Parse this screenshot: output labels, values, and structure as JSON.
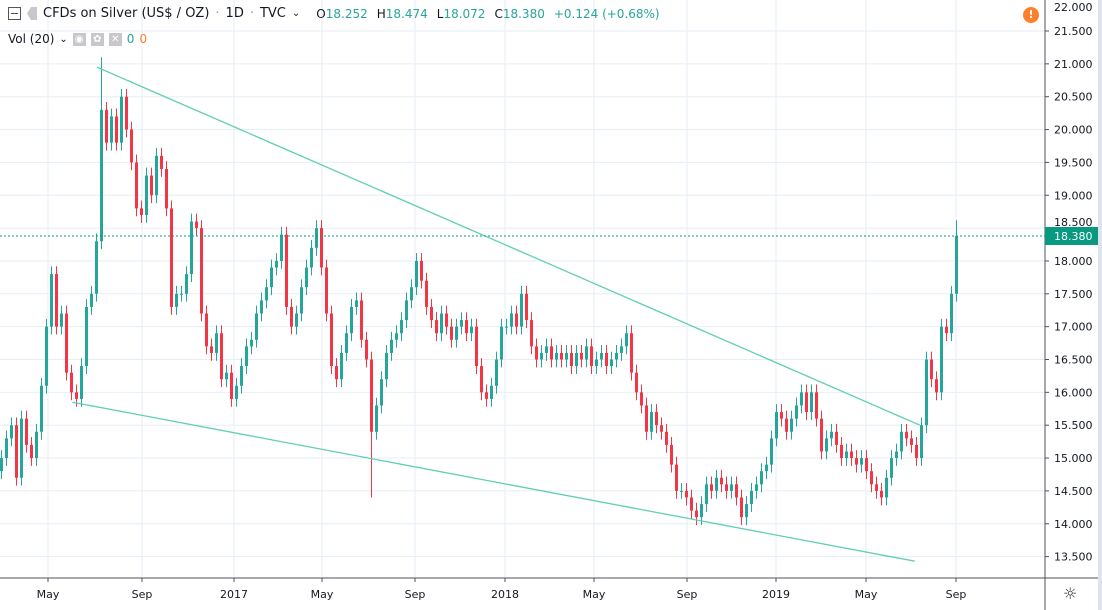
{
  "header": {
    "title": "CFDs on Silver (US$ / OZ)",
    "interval": "1D",
    "exchange": "TVC",
    "ohlc": {
      "o_label": "O",
      "o": "18.252",
      "h_label": "H",
      "h": "18.474",
      "l_label": "L",
      "l": "18.072",
      "c_label": "C",
      "c": "18.380",
      "change": "+0.124 (+0.68%)"
    },
    "volume": {
      "label": "Vol (20)",
      "value1": "0",
      "value2": "0"
    },
    "icons": [
      "collapse-icon",
      "flag-icon",
      "chevron-down-icon",
      "eye-icon",
      "gear-icon",
      "close-icon",
      "warning-icon"
    ]
  },
  "colors": {
    "up": "#26a69a",
    "down": "#f23645",
    "trendline": "#5fcfb4",
    "grid": "#e6eef5",
    "last_price": "#089981",
    "warning": "#ff7f2a"
  },
  "chart_data": {
    "type": "candlestick",
    "title": "CFDs on Silver (US$ / OZ)",
    "x_range": [
      "2016-02",
      "2019-12"
    ],
    "x_ticks": [
      "May",
      "Sep",
      "2017",
      "May",
      "Sep",
      "2018",
      "May",
      "Sep",
      "2019",
      "May",
      "Sep"
    ],
    "ylim": [
      13.2,
      22.0
    ],
    "y_ticks": [
      "22.000",
      "21.500",
      "21.000",
      "20.500",
      "20.000",
      "19.500",
      "19.000",
      "18.500",
      "18.000",
      "17.500",
      "17.000",
      "16.500",
      "16.000",
      "15.500",
      "15.000",
      "14.500",
      "14.000",
      "13.500"
    ],
    "grid": true,
    "approx_weekly_closes": [
      15.0,
      15.3,
      15.5,
      14.7,
      15.6,
      15.2,
      15.0,
      15.4,
      16.1,
      17.0,
      17.8,
      17.0,
      17.2,
      16.3,
      16.0,
      15.9,
      16.4,
      17.3,
      17.5,
      18.3,
      20.3,
      19.8,
      20.2,
      19.8,
      20.5,
      20.0,
      19.5,
      18.8,
      18.7,
      19.3,
      19.0,
      19.6,
      19.4,
      18.8,
      17.3,
      17.5,
      17.5,
      17.8,
      18.6,
      18.5,
      17.2,
      16.7,
      16.6,
      16.9,
      16.2,
      16.3,
      15.9,
      16.1,
      16.4,
      16.7,
      16.8,
      17.2,
      17.4,
      17.6,
      17.9,
      18.0,
      18.4,
      17.3,
      17.0,
      17.2,
      17.6,
      17.9,
      18.2,
      18.5,
      17.9,
      17.2,
      16.4,
      16.2,
      16.6,
      16.9,
      17.3,
      17.4,
      16.8,
      16.5,
      15.4,
      15.8,
      16.2,
      16.6,
      16.8,
      16.9,
      17.1,
      17.4,
      17.6,
      18.0,
      17.7,
      17.3,
      17.1,
      16.9,
      17.2,
      17.0,
      16.8,
      17.0,
      17.1,
      16.9,
      17.0,
      16.4,
      16.0,
      15.9,
      16.1,
      16.5,
      17.0,
      17.0,
      17.2,
      17.0,
      17.5,
      17.1,
      16.7,
      16.5,
      16.6,
      16.7,
      16.5,
      16.6,
      16.5,
      16.6,
      16.4,
      16.6,
      16.5,
      16.7,
      16.4,
      16.5,
      16.6,
      16.4,
      16.5,
      16.6,
      16.7,
      16.9,
      16.3,
      16.0,
      15.8,
      15.4,
      15.7,
      15.5,
      15.4,
      15.2,
      14.9,
      14.5,
      14.5,
      14.4,
      14.2,
      14.1,
      14.3,
      14.6,
      14.5,
      14.7,
      14.6,
      14.5,
      14.6,
      14.4,
      14.1,
      14.3,
      14.5,
      14.6,
      14.8,
      14.9,
      15.3,
      15.7,
      15.6,
      15.4,
      15.6,
      15.8,
      16.0,
      15.7,
      16.0,
      15.6,
      15.1,
      15.3,
      15.4,
      15.2,
      15.0,
      15.1,
      15.0,
      14.9,
      15.0,
      14.8,
      14.6,
      14.5,
      14.4,
      14.7,
      15.0,
      15.1,
      15.4,
      15.3,
      15.2,
      15.0,
      15.5,
      16.5,
      16.2,
      16.0,
      17.0,
      16.9,
      17.5,
      18.38
    ],
    "extreme_wicks": [
      {
        "index": 20,
        "high": 21.1
      },
      {
        "index": 74,
        "low": 14.4
      },
      {
        "index": 191,
        "high": 18.62
      }
    ],
    "trendlines": [
      {
        "from": {
          "date": "2016-07-06",
          "price": 20.95
        },
        "to": {
          "date": "2019-07-22",
          "price": 15.5
        }
      },
      {
        "from": {
          "date": "2016-06-03",
          "price": 15.85
        },
        "to": {
          "date": "2019-07-15",
          "price": 13.43
        }
      }
    ],
    "last_price": {
      "value": 18.38,
      "label": "18.380"
    }
  }
}
